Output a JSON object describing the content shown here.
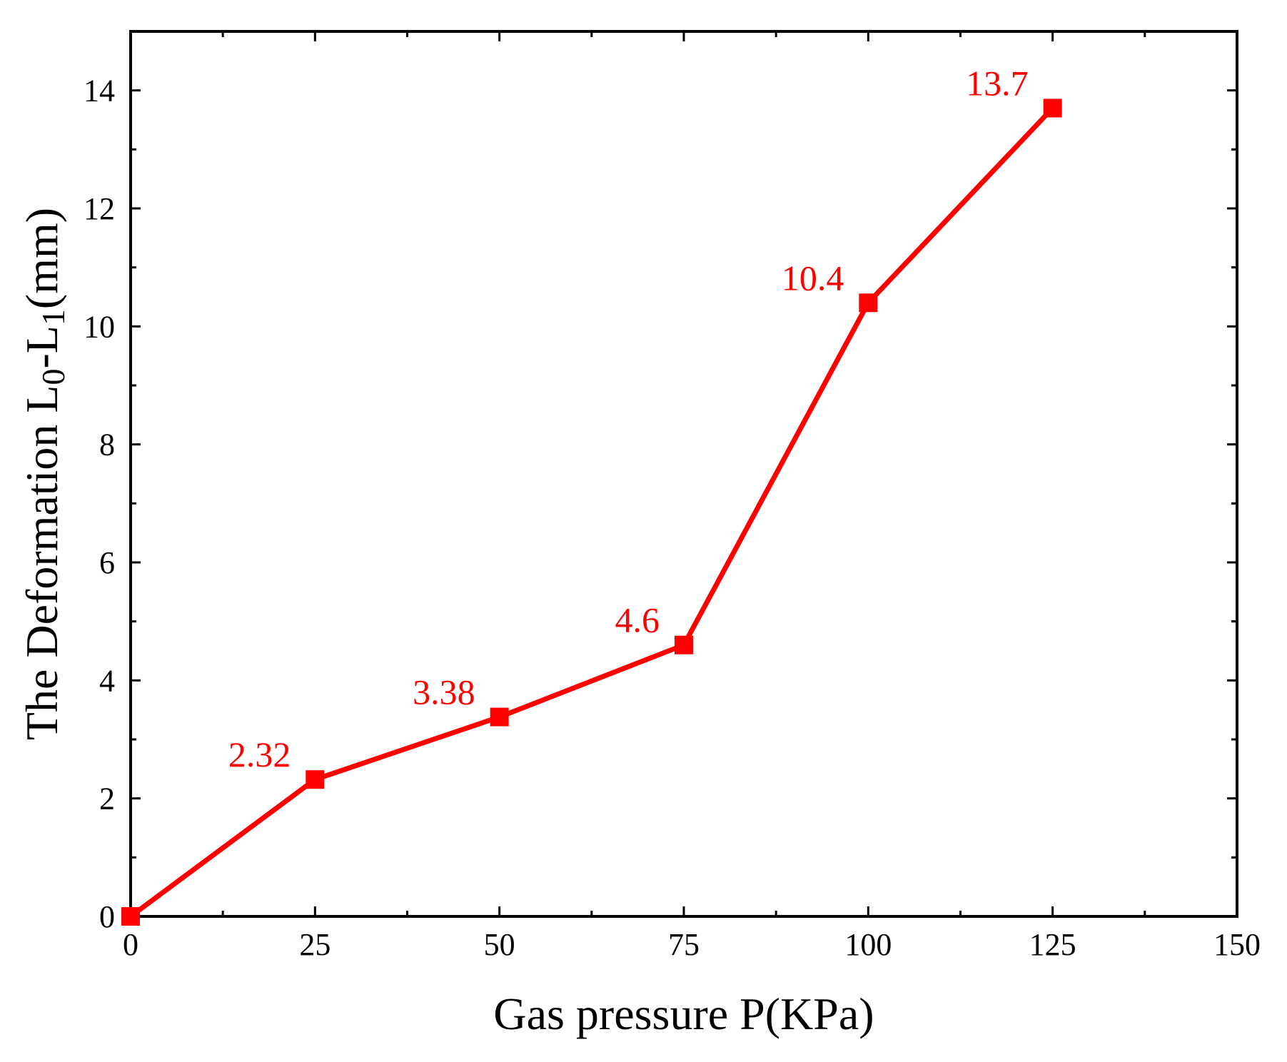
{
  "chart_data": {
    "type": "line",
    "xlabel": "Gas pressure P(KPa)",
    "ylabel": {
      "prefix": "The Deformation L",
      "sub1": "0",
      "middle": "-L",
      "sub2": "1",
      "suffix": "(mm)"
    },
    "xlim": [
      0,
      150
    ],
    "ylim": [
      0,
      15
    ],
    "x_ticks": [
      0,
      25,
      50,
      75,
      100,
      125,
      150
    ],
    "y_ticks": [
      0,
      2,
      4,
      6,
      8,
      10,
      12,
      14
    ],
    "x_tick_labels": [
      "0",
      "25",
      "50",
      "75",
      "100",
      "125",
      "150"
    ],
    "y_tick_labels": [
      "0",
      "2",
      "4",
      "6",
      "8",
      "10",
      "12",
      "14"
    ],
    "grid": false,
    "legend": "none",
    "series": [
      {
        "color": "#ff0000",
        "marker": "square",
        "x": [
          0,
          25,
          50,
          75,
          100,
          125
        ],
        "y": [
          0,
          2.32,
          3.38,
          4.6,
          10.4,
          13.7
        ],
        "data_labels": [
          "",
          "2.32",
          "3.38",
          "4.6",
          "10.4",
          "13.7"
        ]
      }
    ]
  }
}
